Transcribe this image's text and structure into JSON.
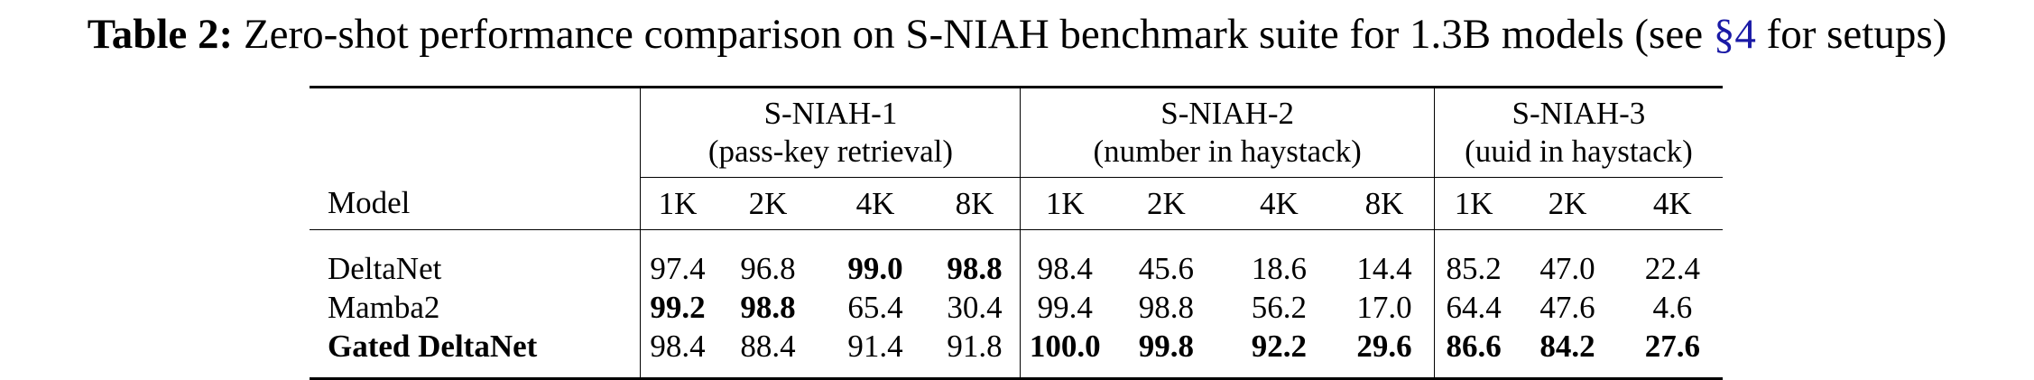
{
  "caption": {
    "label": "Table 2:",
    "text_before_ref": " Zero-shot performance comparison on S-NIAH benchmark suite for 1.3B models (see ",
    "ref": "§4",
    "text_after_ref": " for setups)"
  },
  "table": {
    "model_header": "Model",
    "groups": [
      {
        "name": "S-NIAH-1",
        "subtitle": "(pass-key retrieval)",
        "lengths": [
          "1K",
          "2K",
          "4K",
          "8K"
        ]
      },
      {
        "name": "S-NIAH-2",
        "subtitle": "(number in haystack)",
        "lengths": [
          "1K",
          "2K",
          "4K",
          "8K"
        ]
      },
      {
        "name": "S-NIAH-3",
        "subtitle": "(uuid in haystack)",
        "lengths": [
          "1K",
          "2K",
          "4K"
        ]
      }
    ],
    "rows": [
      {
        "model": "DeltaNet",
        "model_bold": false,
        "values": [
          "97.4",
          "96.8",
          "99.0",
          "98.8",
          "98.4",
          "45.6",
          "18.6",
          "14.4",
          "85.2",
          "47.0",
          "22.4"
        ],
        "bold": [
          false,
          false,
          true,
          true,
          false,
          false,
          false,
          false,
          false,
          false,
          false
        ]
      },
      {
        "model": "Mamba2",
        "model_bold": false,
        "values": [
          "99.2",
          "98.8",
          "65.4",
          "30.4",
          "99.4",
          "98.8",
          "56.2",
          "17.0",
          "64.4",
          "47.6",
          "4.6"
        ],
        "bold": [
          true,
          true,
          false,
          false,
          false,
          false,
          false,
          false,
          false,
          false,
          false
        ]
      },
      {
        "model": "Gated DeltaNet",
        "model_bold": true,
        "values": [
          "98.4",
          "88.4",
          "91.4",
          "91.8",
          "100.0",
          "99.8",
          "92.2",
          "29.6",
          "86.6",
          "84.2",
          "27.6"
        ],
        "bold": [
          false,
          false,
          false,
          false,
          true,
          true,
          true,
          true,
          true,
          true,
          true
        ]
      }
    ]
  }
}
